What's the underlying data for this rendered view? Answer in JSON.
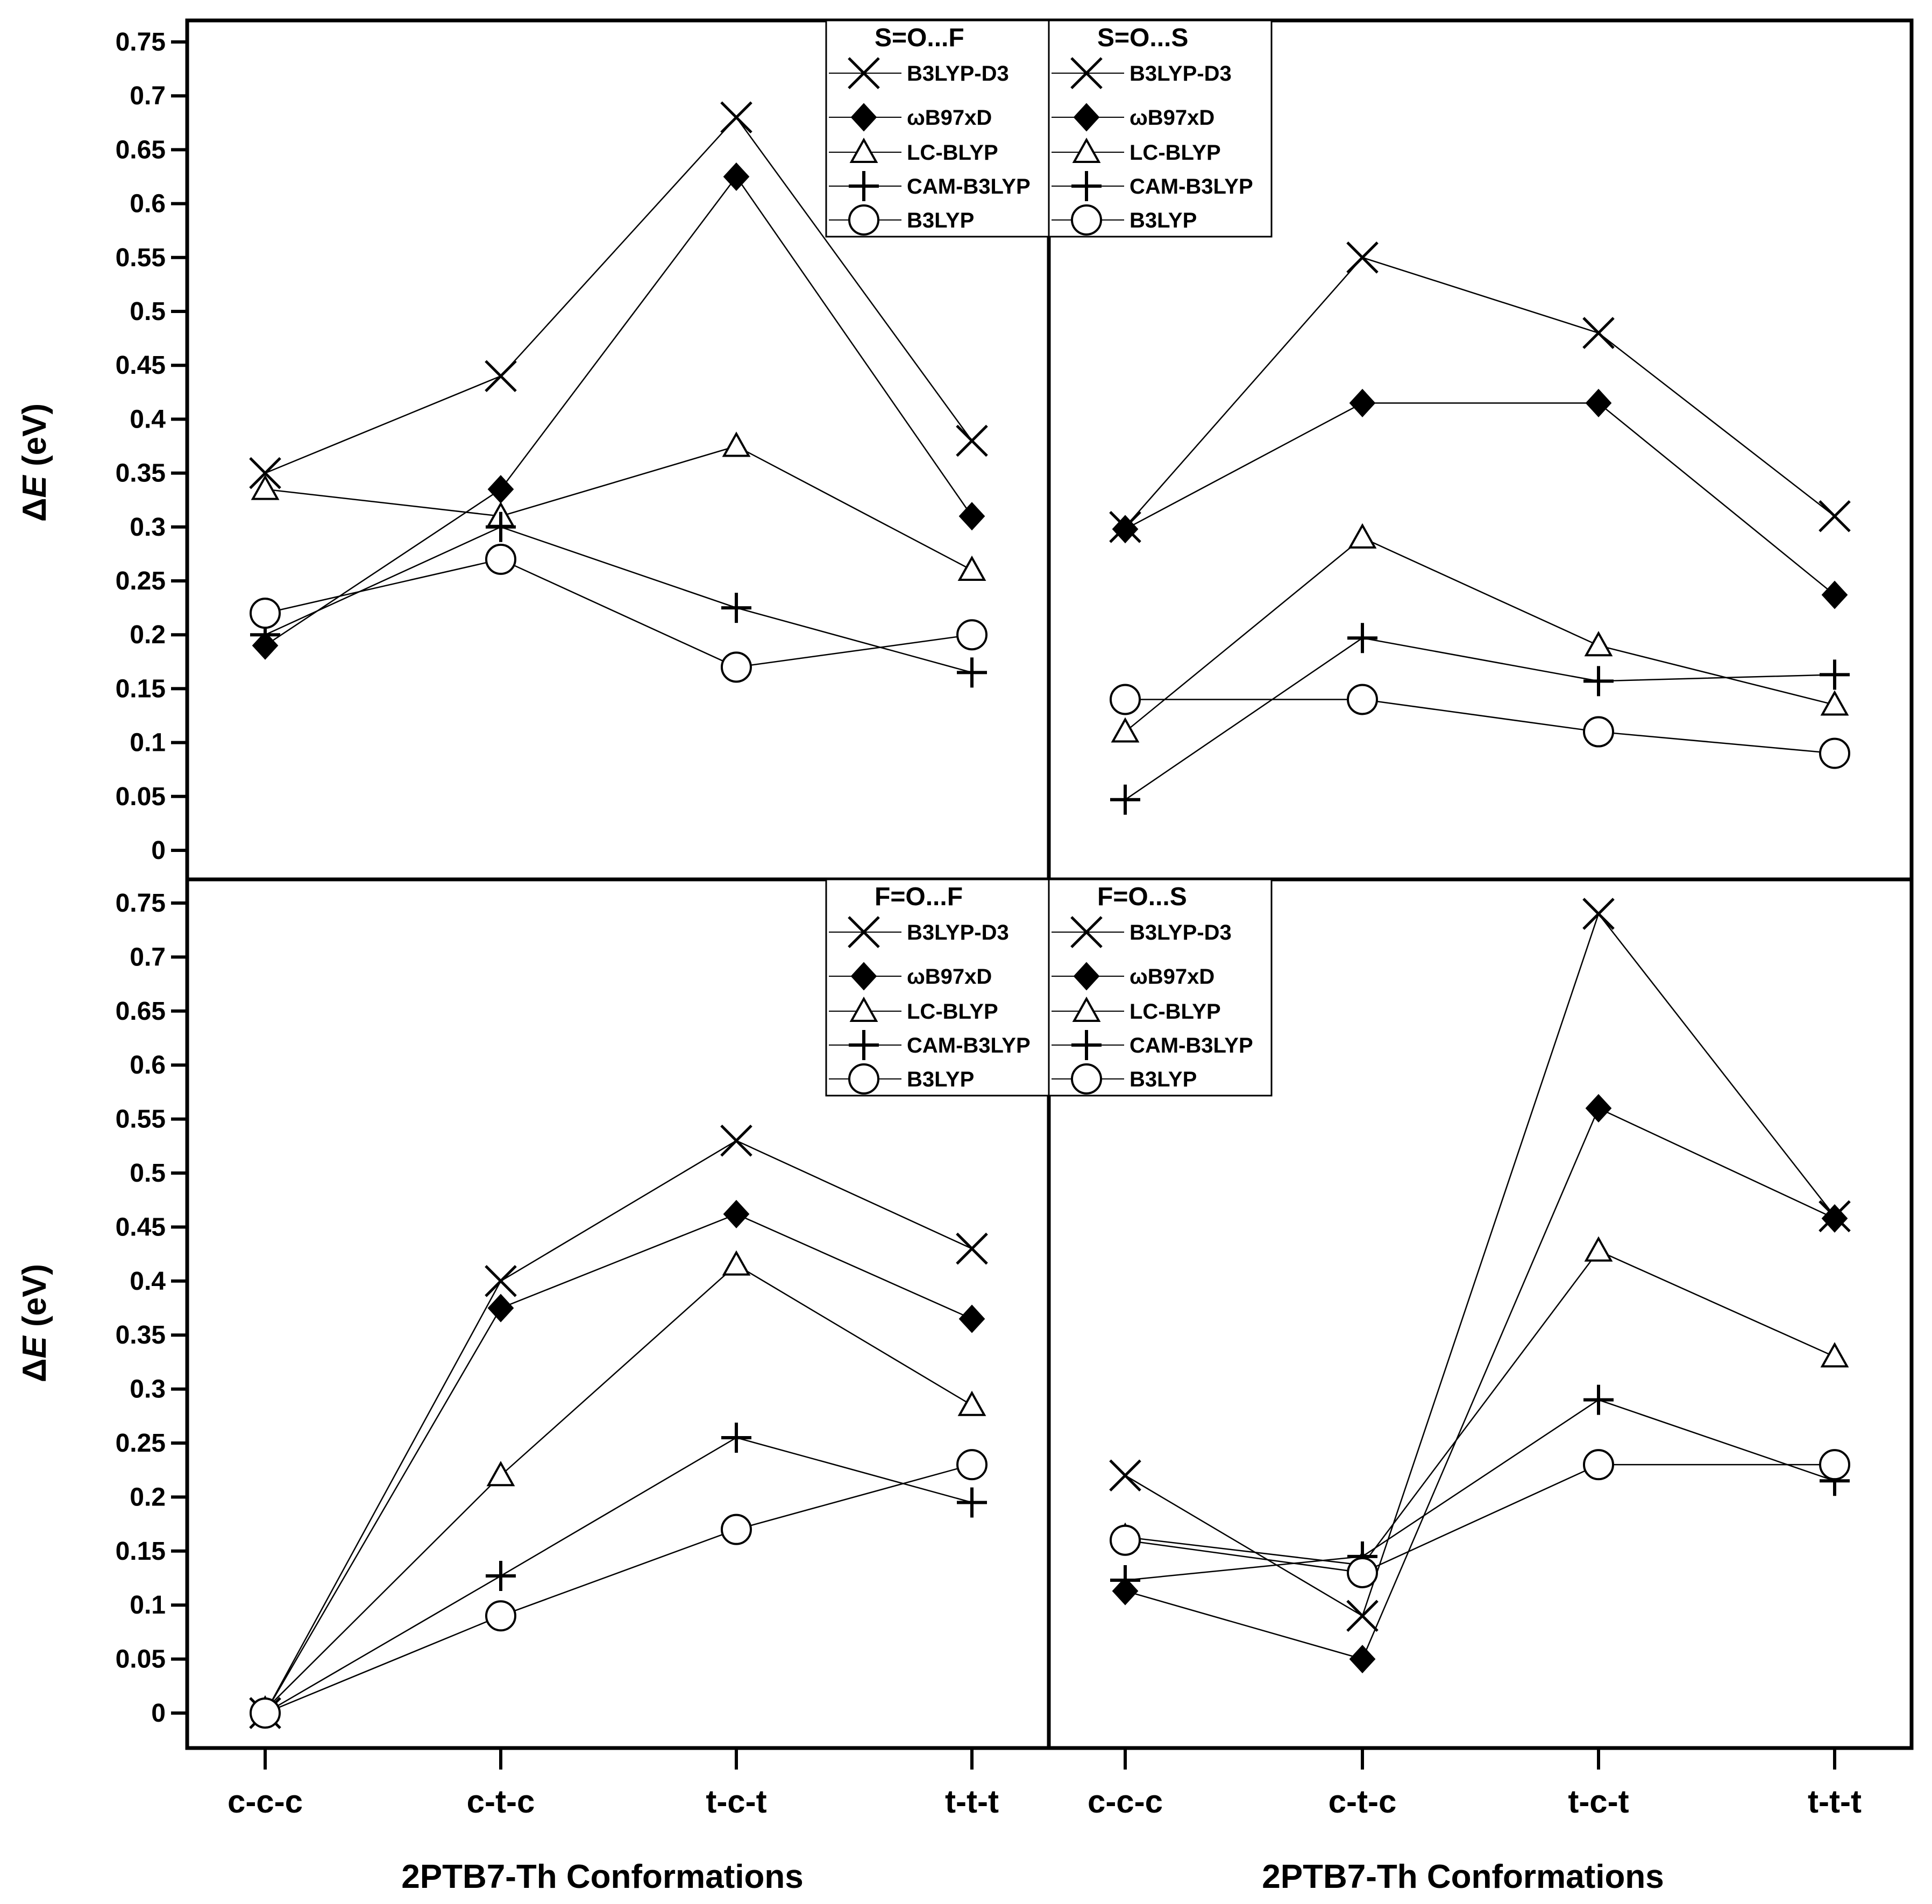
{
  "chart_data": {
    "type": "line",
    "categories": [
      "c-c-c",
      "c-t-c",
      "t-c-t",
      "t-t-t"
    ],
    "ylim": [
      0,
      0.75
    ],
    "yticks": [
      0,
      0.05,
      0.1,
      0.15,
      0.2,
      0.25,
      0.3,
      0.35,
      0.4,
      0.45,
      0.5,
      0.55,
      0.6,
      0.65,
      0.7,
      0.75
    ],
    "ytick_labels": [
      "0",
      "0.05",
      "0.1",
      "0.15",
      "0.2",
      "0.25",
      "0.3",
      "0.35",
      "0.4",
      "0.45",
      "0.5",
      "0.55",
      "0.6",
      "0.65",
      "0.7",
      "0.75"
    ],
    "ylabel_prefix": "Δ",
    "ylabel_var": "E",
    "ylabel_unit": " (eV)",
    "xlabel": "2PTB7-Th Conformations",
    "markers": {
      "B3LYP-D3": "x",
      "ωB97xD": "diamond",
      "LC-BLYP": "triangle",
      "CAM-B3LYP": "plus",
      "B3LYP": "circle"
    },
    "panels": [
      {
        "title": "S=O...F",
        "series": [
          {
            "name": "B3LYP-D3",
            "values": [
              0.35,
              0.44,
              0.68,
              0.38
            ]
          },
          {
            "name": "ωB97xD",
            "values": [
              0.19,
              0.335,
              0.625,
              0.31
            ]
          },
          {
            "name": "LC-BLYP",
            "values": [
              0.335,
              0.31,
              0.375,
              0.26
            ]
          },
          {
            "name": "CAM-B3LYP",
            "values": [
              0.2,
              0.3,
              0.225,
              0.165
            ]
          },
          {
            "name": "B3LYP",
            "values": [
              0.22,
              0.27,
              0.17,
              0.2
            ]
          }
        ]
      },
      {
        "title": "S=O...S",
        "series": [
          {
            "name": "B3LYP-D3",
            "values": [
              0.3,
              0.55,
              0.48,
              0.31
            ]
          },
          {
            "name": "ωB97xD",
            "values": [
              0.298,
              0.415,
              0.415,
              0.237
            ]
          },
          {
            "name": "LC-BLYP",
            "values": [
              0.11,
              0.29,
              0.19,
              0.135
            ]
          },
          {
            "name": "CAM-B3LYP",
            "values": [
              0.047,
              0.197,
              0.157,
              0.163
            ]
          },
          {
            "name": "B3LYP",
            "values": [
              0.14,
              0.14,
              0.11,
              0.09
            ]
          }
        ]
      },
      {
        "title": "F=O...F",
        "series": [
          {
            "name": "B3LYP-D3",
            "values": [
              0.0,
              0.4,
              0.53,
              0.43
            ]
          },
          {
            "name": "ωB97xD",
            "values": [
              0.0,
              0.375,
              0.462,
              0.365
            ]
          },
          {
            "name": "LC-BLYP",
            "values": [
              0.003,
              0.22,
              0.415,
              0.285
            ]
          },
          {
            "name": "CAM-B3LYP",
            "values": [
              0.0,
              0.127,
              0.255,
              0.195
            ]
          },
          {
            "name": "B3LYP",
            "values": [
              0.0,
              0.09,
              0.17,
              0.23
            ]
          }
        ]
      },
      {
        "title": "F=O...S",
        "series": [
          {
            "name": "B3LYP-D3",
            "values": [
              0.22,
              0.09,
              0.74,
              0.46
            ]
          },
          {
            "name": "ωB97xD",
            "values": [
              0.113,
              0.05,
              0.56,
              0.458
            ]
          },
          {
            "name": "LC-BLYP",
            "values": [
              0.163,
              0.137,
              0.428,
              0.33
            ]
          },
          {
            "name": "CAM-B3LYP",
            "values": [
              0.123,
              0.145,
              0.29,
              0.215
            ]
          },
          {
            "name": "B3LYP",
            "values": [
              0.16,
              0.13,
              0.23,
              0.23
            ]
          }
        ]
      }
    ]
  }
}
